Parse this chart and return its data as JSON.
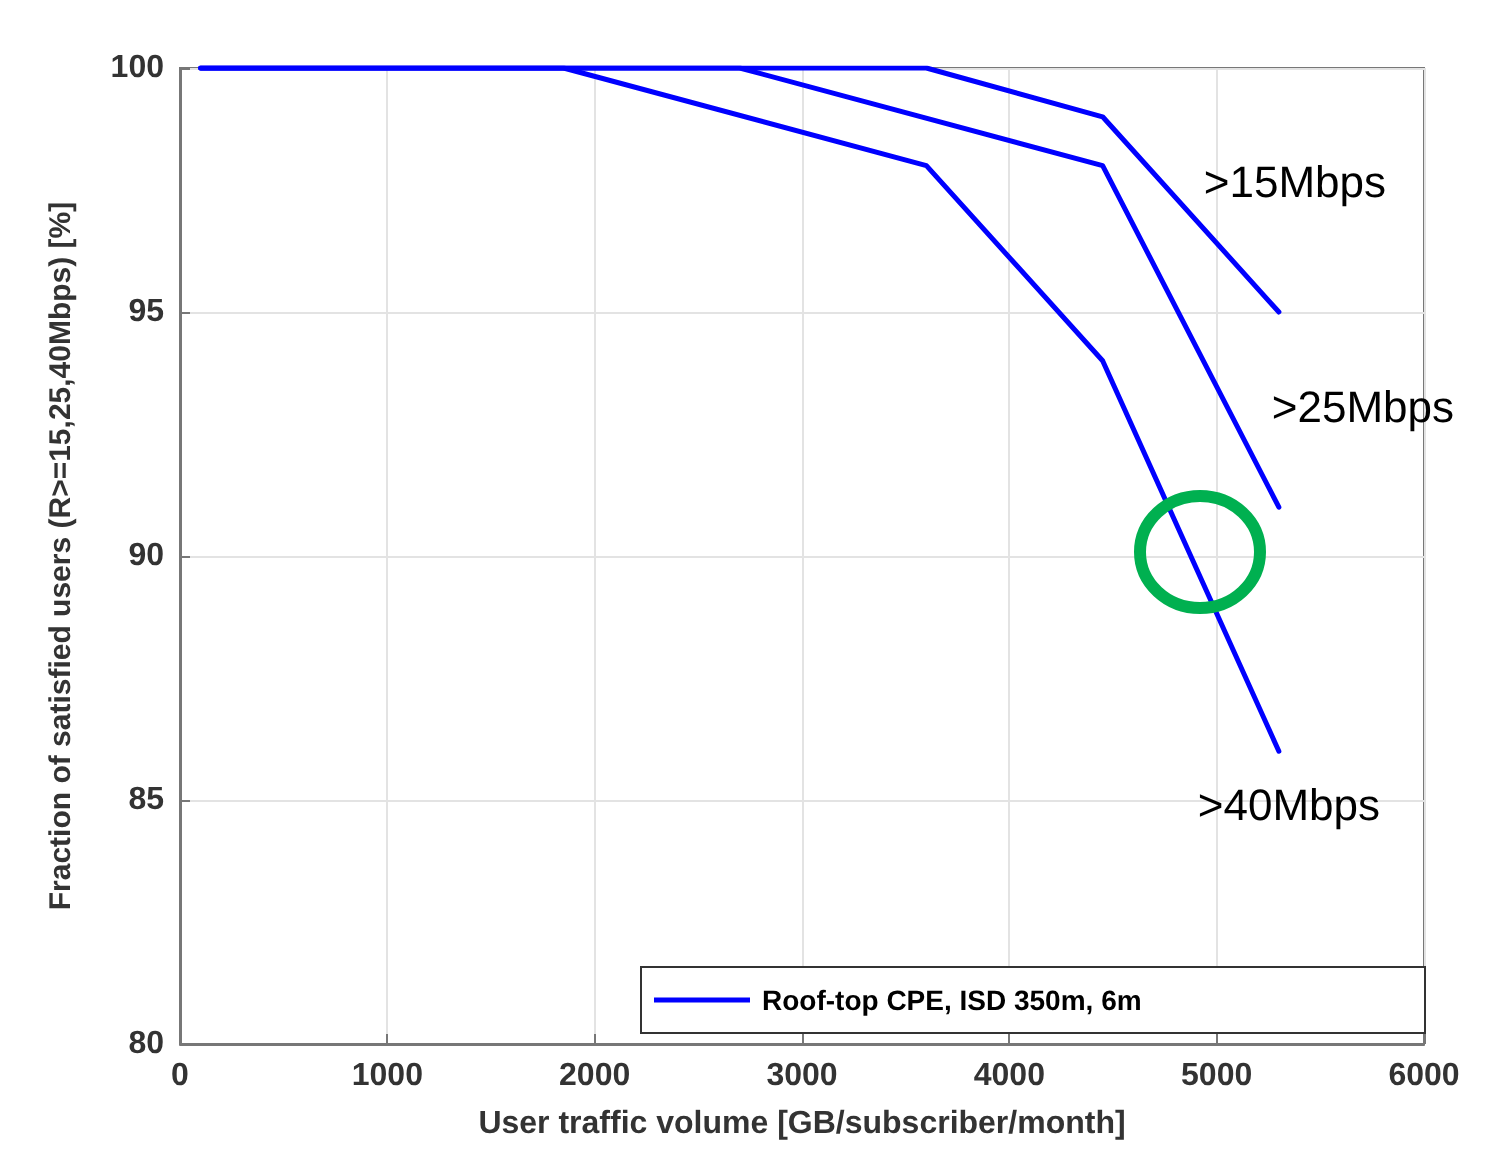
{
  "chart_data": {
    "type": "line",
    "xlabel": "User traffic volume [GB/subscriber/month]",
    "ylabel": "Fraction of satisfied users (R>=15,25,40Mbps) [%]",
    "xlim": [
      0,
      6000
    ],
    "xticks": [
      0,
      1000,
      2000,
      3000,
      4000,
      5000,
      6000
    ],
    "ylim": [
      80,
      100
    ],
    "yticks": [
      80,
      85,
      90,
      95,
      100
    ],
    "grid": true,
    "marker": "none",
    "line_style": "solid",
    "annotations": [
      "Roof-top CPE, ISD 350m, 6m"
    ],
    "series": [
      {
        "name": ">15Mbps",
        "color": "#0000ff",
        "x": [
          100,
          3600,
          4450,
          5300
        ],
        "values": [
          100,
          100,
          99,
          95
        ]
      },
      {
        "name": ">25Mbps",
        "color": "#0000ff",
        "x": [
          100,
          2700,
          4450,
          5300
        ],
        "values": [
          100,
          100,
          98,
          91
        ]
      },
      {
        "name": ">40Mbps",
        "color": "#0000ff",
        "x": [
          100,
          1850,
          3600,
          4450,
          5300
        ],
        "values": [
          100,
          100,
          98,
          94,
          86
        ]
      }
    ]
  }
}
